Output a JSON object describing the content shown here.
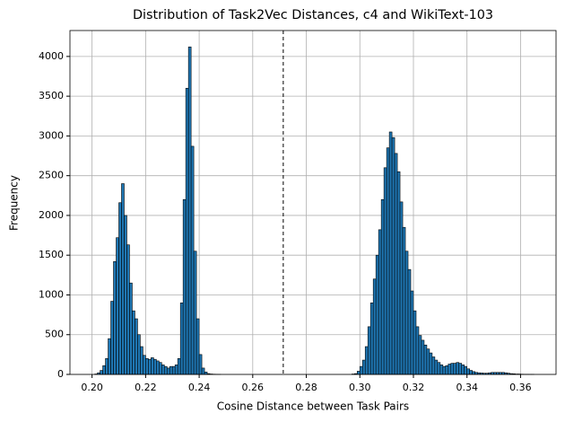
{
  "chart_data": {
    "type": "histogram",
    "title": "Distribution of Task2Vec Distances, c4 and WikiText-103",
    "xlabel": "Cosine Distance between Task Pairs",
    "ylabel": "Frequency",
    "color": "#1f77b4",
    "edgecolor": "#000000",
    "grid": true,
    "vline": 0.2714,
    "bins": [
      0.2,
      0.201,
      0.202,
      0.203,
      0.204,
      0.205,
      0.206,
      0.207,
      0.208,
      0.209,
      0.21,
      0.211,
      0.212,
      0.213,
      0.214,
      0.215,
      0.216,
      0.217,
      0.218,
      0.219,
      0.22,
      0.221,
      0.222,
      0.223,
      0.224,
      0.225,
      0.226,
      0.227,
      0.228,
      0.229,
      0.23,
      0.231,
      0.232,
      0.233,
      0.234,
      0.235,
      0.236,
      0.237,
      0.238,
      0.239,
      0.24,
      0.241,
      0.242,
      0.243,
      0.244,
      0.245,
      0.246,
      0.247,
      0.248,
      0.249,
      0.25,
      0.251,
      0.252,
      0.253,
      0.254,
      0.255,
      0.256,
      0.257,
      0.258,
      0.259,
      0.26,
      0.261,
      0.262,
      0.263,
      0.264,
      0.265,
      0.266,
      0.267,
      0.268,
      0.269,
      0.27,
      0.271,
      0.272,
      0.273,
      0.274,
      0.275,
      0.276,
      0.277,
      0.278,
      0.279,
      0.28,
      0.281,
      0.282,
      0.283,
      0.284,
      0.285,
      0.286,
      0.287,
      0.288,
      0.289,
      0.29,
      0.291,
      0.292,
      0.293,
      0.294,
      0.295,
      0.296,
      0.297,
      0.298,
      0.299,
      0.3,
      0.301,
      0.302,
      0.303,
      0.304,
      0.305,
      0.306,
      0.307,
      0.308,
      0.309,
      0.31,
      0.311,
      0.312,
      0.313,
      0.314,
      0.315,
      0.316,
      0.317,
      0.318,
      0.319,
      0.32,
      0.321,
      0.322,
      0.323,
      0.324,
      0.325,
      0.326,
      0.327,
      0.328,
      0.329,
      0.33,
      0.331,
      0.332,
      0.333,
      0.334,
      0.335,
      0.336,
      0.337,
      0.338,
      0.339,
      0.34,
      0.341,
      0.342,
      0.343,
      0.344,
      0.345,
      0.346,
      0.347,
      0.348,
      0.349,
      0.35,
      0.351,
      0.352,
      0.353,
      0.354,
      0.355,
      0.356,
      0.357,
      0.358,
      0.359,
      0.36,
      0.361,
      0.362,
      0.363,
      0.364,
      0.365
    ],
    "counts": [
      0,
      5,
      20,
      50,
      110,
      200,
      450,
      920,
      1420,
      1720,
      2160,
      2400,
      2000,
      1630,
      1150,
      800,
      700,
      500,
      350,
      240,
      200,
      190,
      210,
      190,
      170,
      150,
      120,
      100,
      80,
      100,
      100,
      120,
      200,
      900,
      2200,
      3600,
      4120,
      2870,
      1550,
      700,
      250,
      80,
      30,
      10,
      5,
      3,
      2,
      1,
      0,
      0,
      0,
      0,
      0,
      0,
      0,
      0,
      0,
      0,
      0,
      0,
      0,
      0,
      0,
      0,
      0,
      0,
      0,
      0,
      0,
      0,
      0,
      0,
      0,
      0,
      0,
      0,
      0,
      0,
      0,
      0,
      0,
      0,
      0,
      0,
      0,
      0,
      0,
      0,
      0,
      0,
      0,
      0,
      0,
      0,
      0,
      0,
      0,
      5,
      10,
      40,
      100,
      180,
      350,
      600,
      900,
      1200,
      1500,
      1820,
      2200,
      2600,
      2850,
      3050,
      2980,
      2780,
      2550,
      2170,
      1850,
      1550,
      1320,
      1050,
      800,
      600,
      490,
      430,
      370,
      320,
      270,
      220,
      180,
      150,
      120,
      100,
      110,
      130,
      140,
      140,
      150,
      140,
      120,
      100,
      70,
      50,
      35,
      25,
      20,
      18,
      15,
      15,
      20,
      25,
      25,
      25,
      25,
      25,
      20,
      15,
      10,
      8,
      5,
      5,
      3,
      2,
      2,
      1,
      1
    ],
    "xlim": [
      0.19175,
      0.37325
    ],
    "ylim": [
      0,
      4326
    ],
    "xticks": [
      {
        "value": 0.2,
        "label": "0.20"
      },
      {
        "value": 0.22,
        "label": "0.22"
      },
      {
        "value": 0.24,
        "label": "0.24"
      },
      {
        "value": 0.26,
        "label": "0.26"
      },
      {
        "value": 0.28,
        "label": "0.28"
      },
      {
        "value": 0.3,
        "label": "0.30"
      },
      {
        "value": 0.32,
        "label": "0.32"
      },
      {
        "value": 0.34,
        "label": "0.34"
      },
      {
        "value": 0.36,
        "label": "0.36"
      }
    ],
    "yticks": [
      0,
      500,
      1000,
      1500,
      2000,
      2500,
      3000,
      3500,
      4000
    ]
  }
}
